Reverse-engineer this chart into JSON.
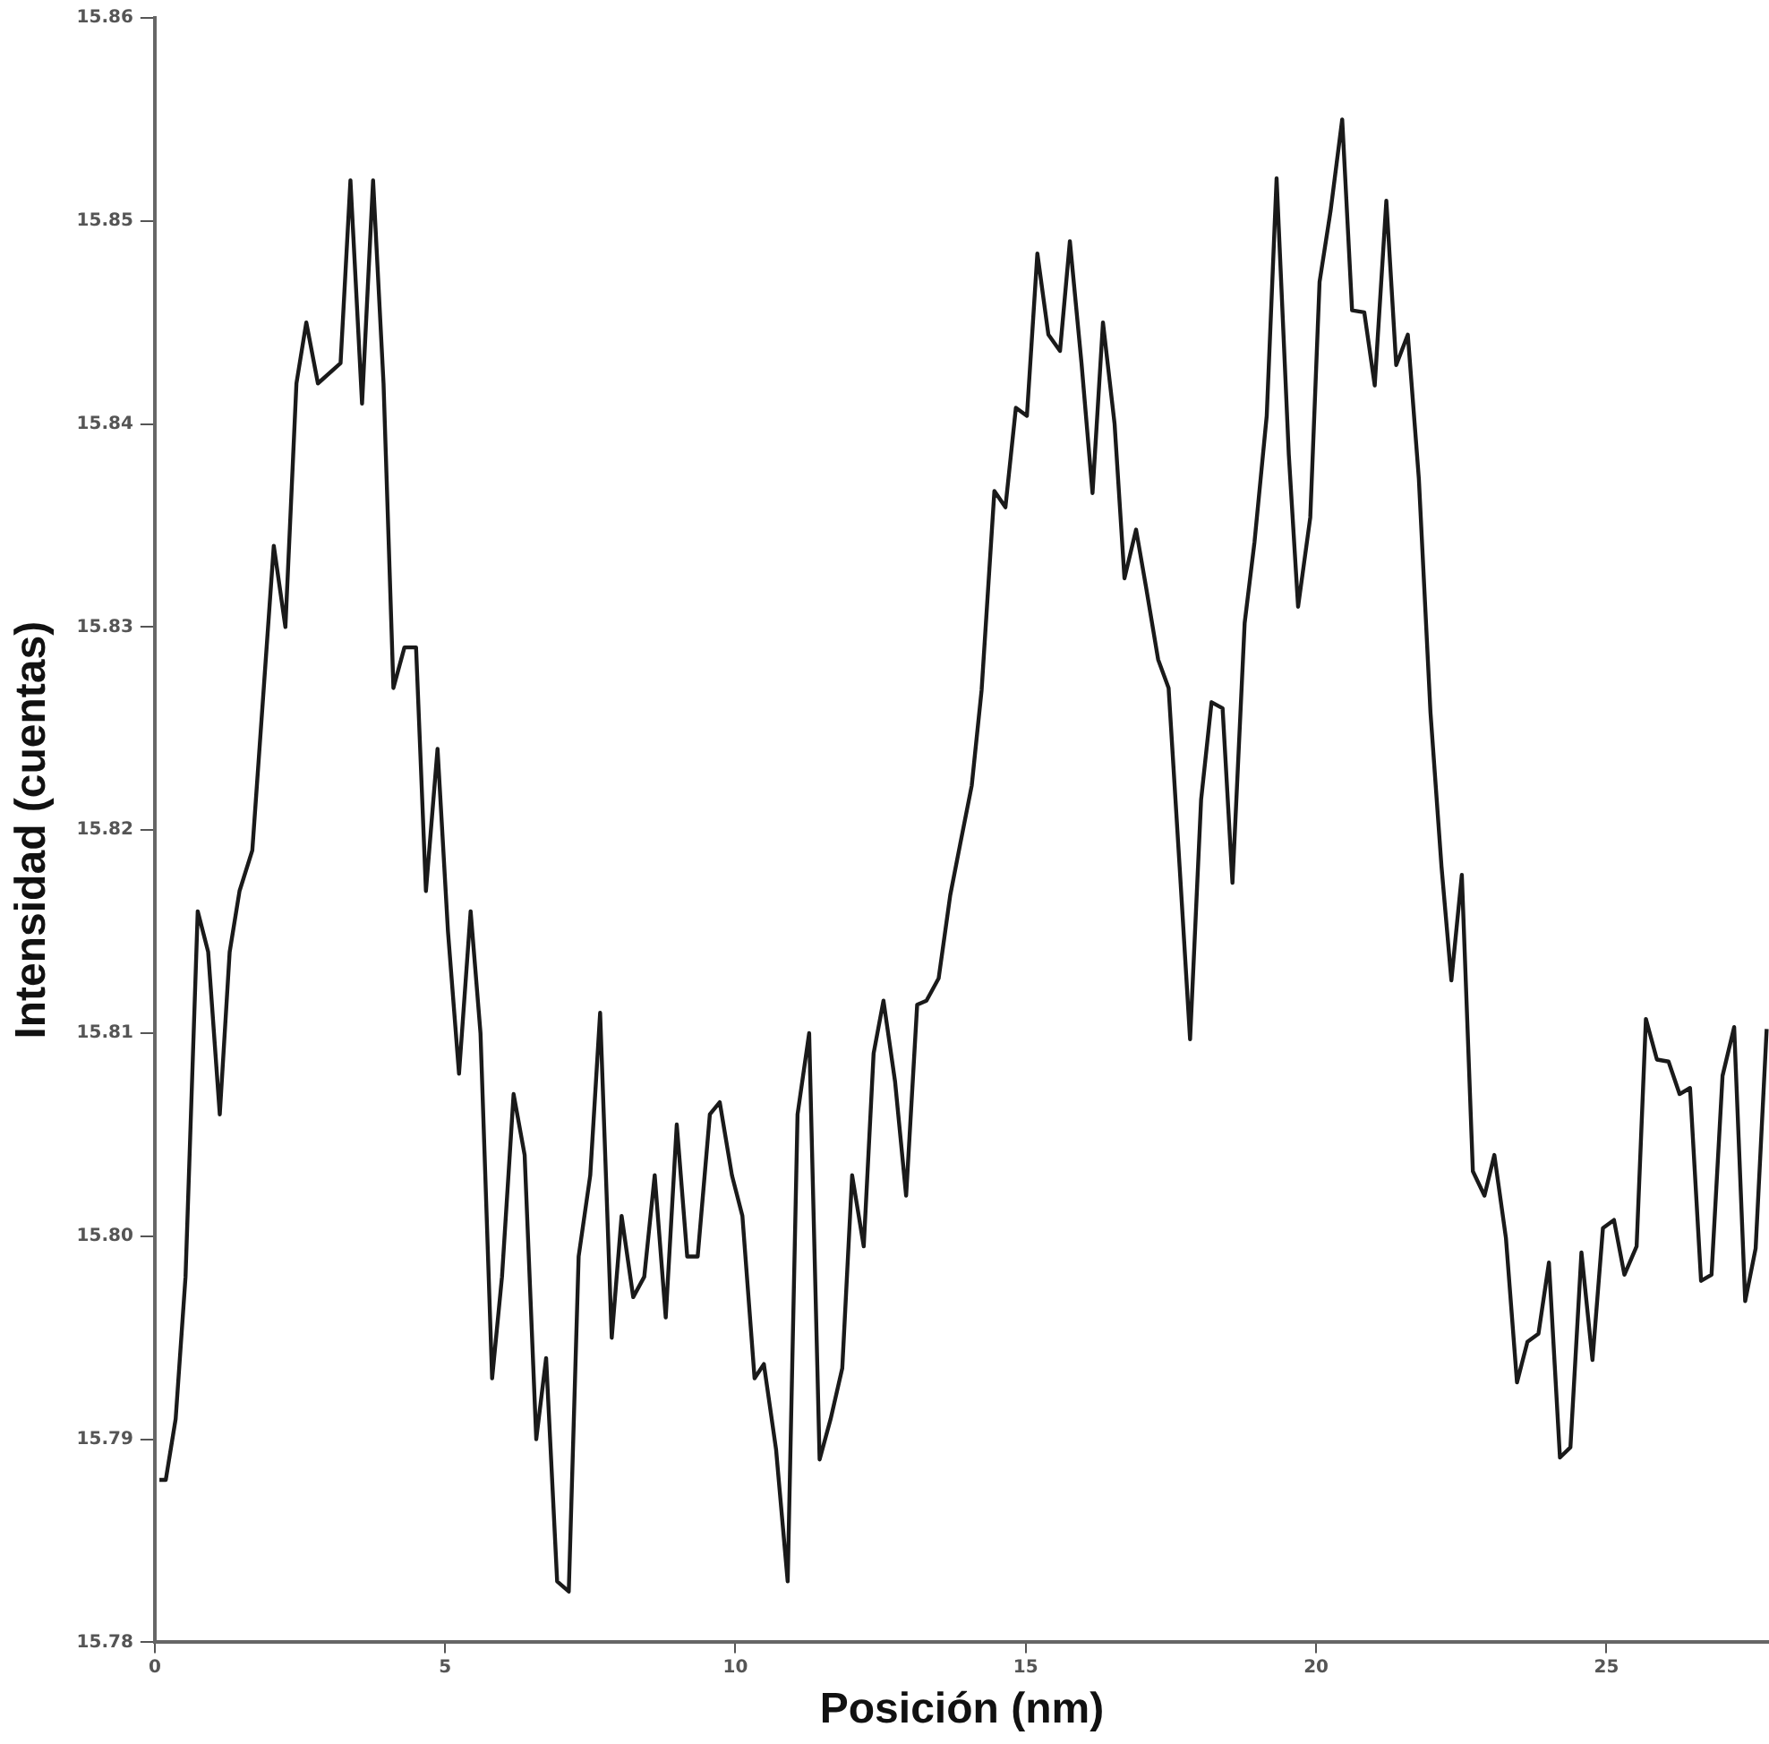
{
  "chart_data": {
    "type": "line",
    "xlabel": "Posición (nm)",
    "ylabel": "Intensidad (cuentas)",
    "color": "#1a1a1a",
    "marker": "none",
    "line_style": "solid",
    "grid": false,
    "legend": false,
    "xlim": [
      0,
      27.8
    ],
    "xticks": [
      0,
      5,
      10,
      15,
      20,
      25
    ],
    "ylim": [
      15.78,
      15.86
    ],
    "yticks": [
      {
        "value": 15.78,
        "label": "15.78"
      },
      {
        "value": 15.79,
        "label": "15.79"
      },
      {
        "value": 15.8,
        "label": "15.80"
      },
      {
        "value": 15.81,
        "label": "15.81"
      },
      {
        "value": 15.82,
        "label": "15.82"
      },
      {
        "value": 15.83,
        "label": "15.83"
      },
      {
        "value": 15.84,
        "label": "15.84"
      },
      {
        "value": 15.85,
        "label": "15.85"
      },
      {
        "value": 15.86,
        "label": "15.86"
      }
    ],
    "x": [
      0.08,
      0.19,
      0.36,
      0.53,
      0.74,
      0.92,
      1.12,
      1.29,
      1.46,
      1.68,
      2.05,
      2.25,
      2.44,
      2.61,
      2.81,
      3.2,
      3.37,
      3.57,
      3.76,
      3.94,
      4.11,
      4.3,
      4.5,
      4.67,
      4.87,
      5.05,
      5.24,
      5.44,
      5.61,
      5.81,
      5.98,
      6.18,
      6.37,
      6.57,
      6.74,
      6.93,
      7.13,
      7.3,
      7.5,
      7.67,
      7.87,
      8.04,
      8.24,
      8.43,
      8.61,
      8.8,
      8.99,
      9.17,
      9.35,
      9.56,
      9.73,
      9.94,
      10.12,
      10.33,
      10.49,
      10.7,
      10.9,
      11.07,
      11.27,
      11.45,
      11.64,
      11.84,
      12.01,
      12.21,
      12.38,
      12.55,
      12.75,
      12.94,
      13.13,
      13.29,
      13.5,
      13.7,
      13.87,
      14.07,
      14.24,
      14.46,
      14.65,
      14.83,
      15.02,
      15.2,
      15.39,
      15.59,
      15.76,
      15.96,
      16.15,
      16.33,
      16.53,
      16.7,
      16.9,
      17.07,
      17.28,
      17.46,
      17.65,
      17.83,
      18.02,
      18.2,
      18.39,
      18.56,
      18.77,
      18.94,
      19.15,
      19.32,
      19.53,
      19.69,
      19.9,
      20.06,
      20.25,
      20.45,
      20.62,
      20.83,
      21.01,
      21.21,
      21.38,
      21.58,
      21.77,
      21.97,
      22.16,
      22.33,
      22.51,
      22.7,
      22.9,
      23.07,
      23.27,
      23.46,
      23.64,
      23.83,
      24.01,
      24.2,
      24.38,
      24.57,
      24.76,
      24.94,
      25.13,
      25.31,
      25.52,
      25.68,
      25.87,
      26.07,
      26.26,
      26.44,
      26.63,
      26.81,
      27.0,
      27.2,
      27.39,
      27.57,
      27.76
    ],
    "values": [
      15.788,
      15.788,
      15.791,
      15.798,
      15.816,
      15.814,
      15.806,
      15.814,
      15.817,
      15.819,
      15.834,
      15.83,
      15.842,
      15.845,
      15.842,
      15.843,
      15.852,
      15.841,
      15.852,
      15.842,
      15.827,
      15.829,
      15.829,
      15.817,
      15.824,
      15.815,
      15.808,
      15.816,
      15.81,
      15.793,
      15.798,
      15.807,
      15.804,
      15.79,
      15.794,
      15.783,
      15.7825,
      15.799,
      15.803,
      15.811,
      15.795,
      15.801,
      15.797,
      15.798,
      15.803,
      15.796,
      15.8055,
      15.799,
      15.799,
      15.806,
      15.8066,
      15.803,
      15.801,
      15.793,
      15.7937,
      15.7895,
      15.783,
      15.806,
      15.81,
      15.789,
      15.791,
      15.7935,
      15.803,
      15.7995,
      15.809,
      15.8116,
      15.8076,
      15.802,
      15.8114,
      15.8116,
      15.8127,
      15.8168,
      15.8193,
      15.8222,
      15.8269,
      15.8367,
      15.8359,
      15.8408,
      15.8404,
      15.8484,
      15.8444,
      15.8436,
      15.849,
      15.843,
      15.8366,
      15.845,
      15.84,
      15.8324,
      15.8348,
      15.832,
      15.8284,
      15.827,
      15.8182,
      15.8097,
      15.8215,
      15.8263,
      15.826,
      15.8174,
      15.8302,
      15.8342,
      15.8404,
      15.8521,
      15.8385,
      15.831,
      15.8354,
      15.847,
      15.8505,
      15.855,
      15.8456,
      15.8455,
      15.8419,
      15.851,
      15.8429,
      15.8444,
      15.8373,
      15.8258,
      15.8182,
      15.8126,
      15.8178,
      15.8032,
      15.802,
      15.804,
      15.7999,
      15.7928,
      15.7948,
      15.7952,
      15.7987,
      15.7891,
      15.7896,
      15.7992,
      15.7939,
      15.8004,
      15.8008,
      15.7981,
      15.7995,
      15.8107,
      15.8087,
      15.8086,
      15.807,
      15.8073,
      15.7978,
      15.7981,
      15.8079,
      15.8103,
      15.7968,
      15.7994,
      15.8102
    ]
  }
}
